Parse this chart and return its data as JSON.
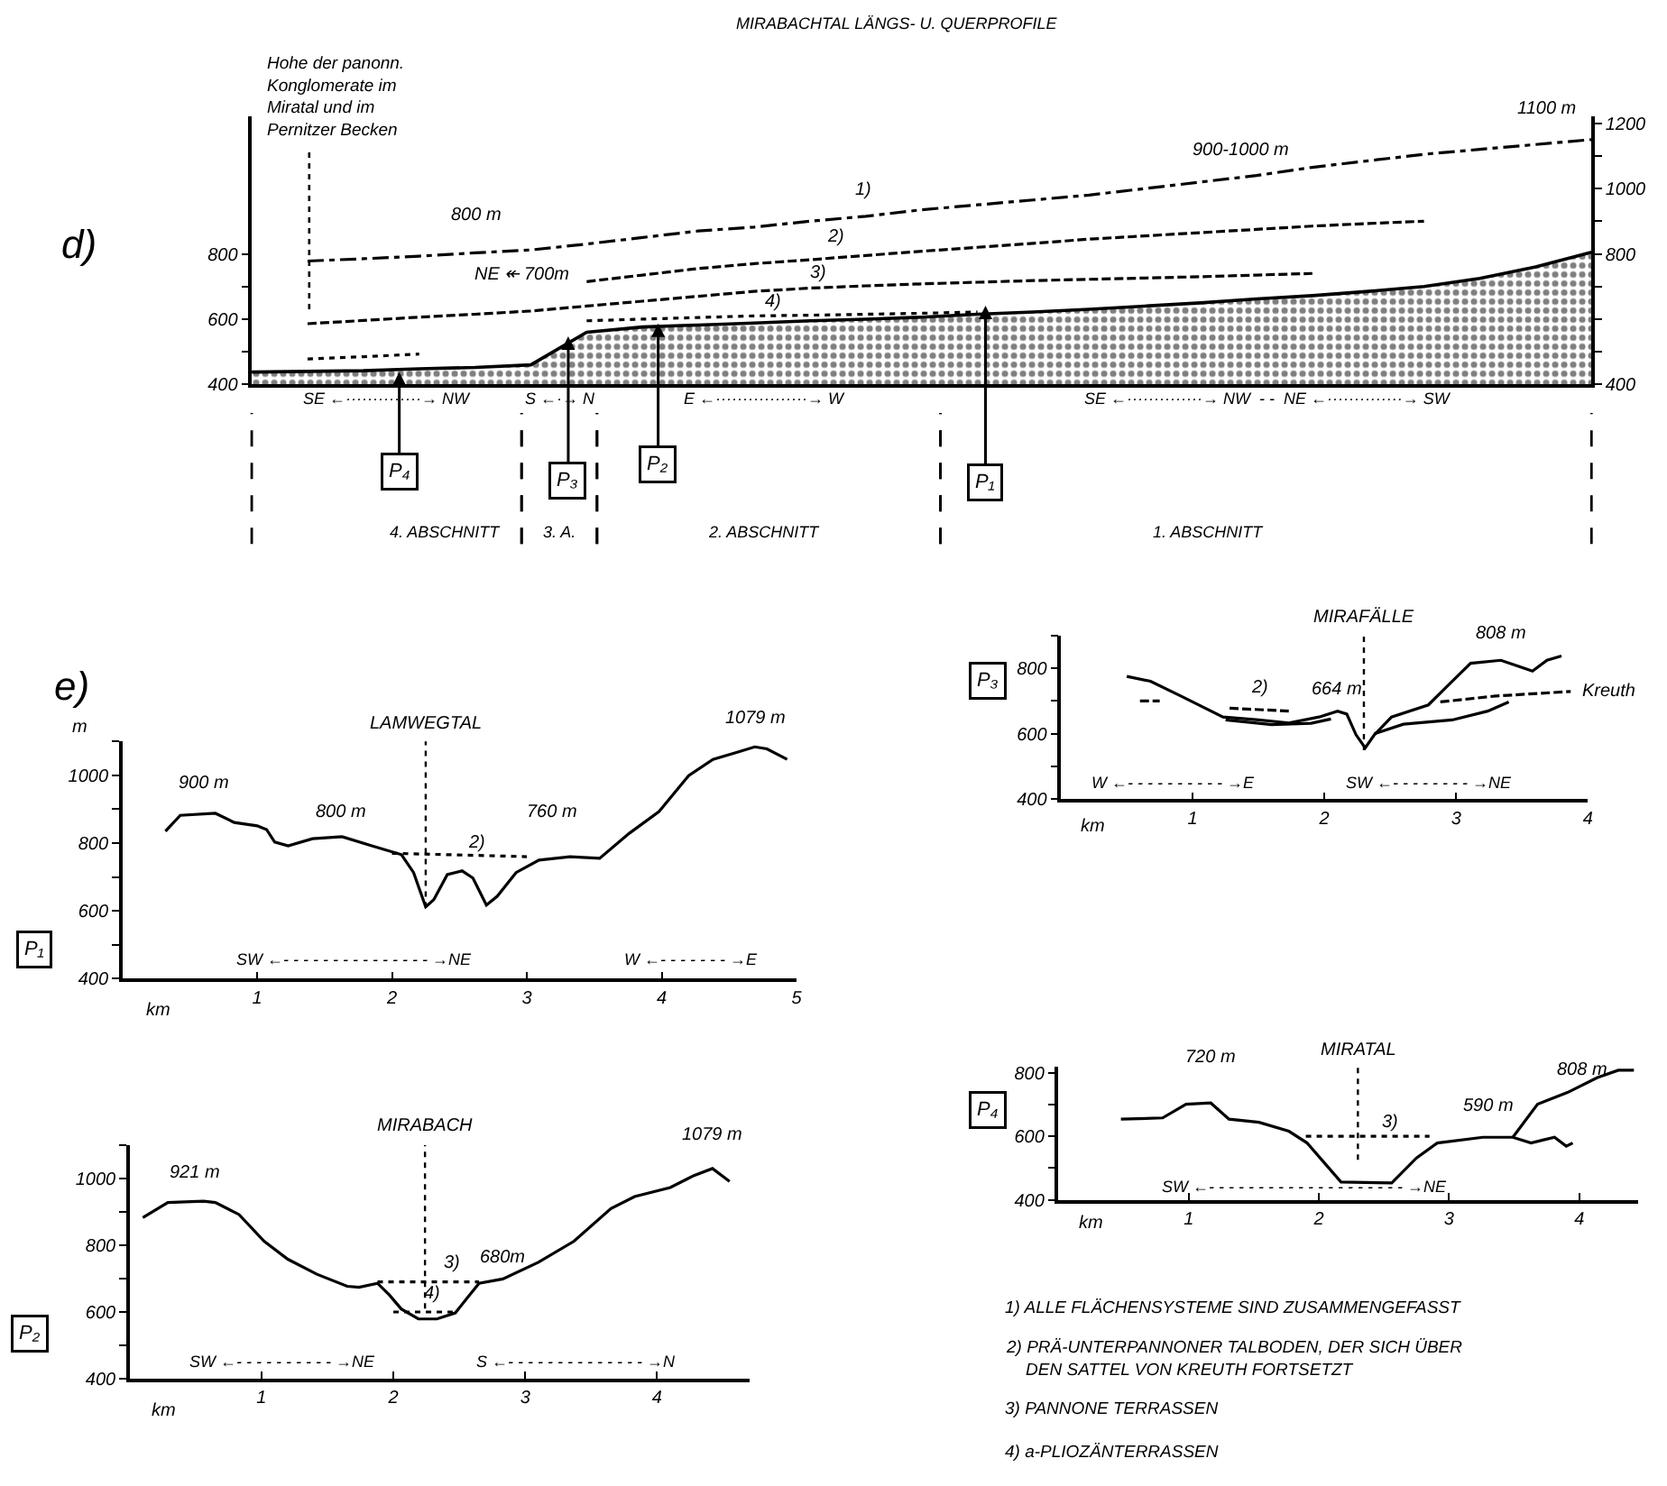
{
  "chart_data": [
    {
      "type": "line",
      "title": "MIRABACHTAL LÄNGS- U. QUERPROFILE",
      "categories": [
        null,
        null,
        null,
        null,
        null,
        null,
        null,
        null,
        null,
        null,
        null,
        null,
        null,
        null,
        null,
        null,
        null,
        null,
        null,
        null,
        null,
        null,
        null,
        null,
        null
      ],
      "ylim": [
        400,
        1220
      ],
      "yticks": [
        400,
        {
          "value": 500,
          "label": null
        },
        600,
        {
          "value": 700,
          "label": null
        },
        800
      ],
      "y2lim": [
        400,
        1220
      ],
      "y2ticks": [
        400,
        {
          "value": 500,
          "label": null
        },
        {
          "value": 600,
          "label": null
        },
        {
          "value": 700,
          "label": null
        },
        800,
        {
          "value": 900,
          "label": null
        },
        1000,
        {
          "value": 1100,
          "label": null
        },
        1200
      ],
      "tick_labels": "y",
      "marker": "none",
      "series": [
        {
          "type": "area",
          "color": "#000000",
          "values": [
            438,
            440,
            442,
            448,
            452,
            460,
            560,
            576,
            582,
            588,
            595,
            600,
            606,
            615,
            622,
            630,
            640,
            650,
            662,
            672,
            685,
            700,
            725,
            760,
            805
          ]
        },
        {
          "color": "#000000",
          "line_style": "dashdot",
          "axis": "y2",
          "values": [
            null,
            778,
            785,
            793,
            803,
            812,
            830,
            850,
            870,
            882,
            900,
            915,
            935,
            950,
            965,
            980,
            1000,
            1020,
            1040,
            1065,
            1085,
            1105,
            1120,
            1135,
            1150
          ]
        },
        {
          "color": "#000000",
          "line_style": "dashed",
          "values": [
            null,
            null,
            null,
            null,
            null,
            null,
            715,
            735,
            755,
            770,
            782,
            795,
            808,
            820,
            832,
            845,
            855,
            865,
            875,
            885,
            893,
            900,
            null,
            null,
            null
          ]
        },
        {
          "color": "#000000",
          "line_style": "dashed",
          "values": [
            null,
            586,
            596,
            606,
            615,
            625,
            640,
            655,
            670,
            685,
            695,
            702,
            708,
            713,
            718,
            722,
            726,
            730,
            735,
            740,
            null,
            null,
            null,
            null,
            null
          ]
        },
        {
          "color": "#000000",
          "line_style": "dotted",
          "values": [
            null,
            478,
            485,
            493,
            null,
            null,
            595,
            600,
            605,
            610,
            612,
            615,
            618,
            622,
            null,
            null,
            null,
            null,
            null,
            null,
            null,
            null,
            null,
            null,
            null
          ]
        }
      ],
      "annotations": [
        "d)",
        "Hohe der panonn.\nKonglomerate im\nMiratal und im\nPernitzer Becken",
        "800 m",
        "NE ↞ 700m",
        "900-1000 m",
        "1100 m",
        "1)",
        "2)",
        "3)",
        "4)",
        "P₄",
        "P₃",
        "P₂",
        "P₁",
        "SE ←··············→ NW",
        "S ←·→ N",
        "E ←·················→ W",
        "SE ←··············→ NW  - -  NE ←··············→ SW",
        "4. ABSCHNITT",
        "3. A.",
        "2. ABSCHNITT",
        "1. ABSCHNITT"
      ]
    },
    {
      "type": "line",
      "xlabel": "km",
      "ylabel": "m",
      "xlim": [
        0,
        5
      ],
      "xticks": [
        1,
        2,
        3,
        4,
        5
      ],
      "ylim": [
        400,
        1100
      ],
      "yticks": [
        400,
        {
          "value": 500,
          "label": null
        },
        600,
        {
          "value": 700,
          "label": null
        },
        800,
        {
          "value": 900,
          "label": null
        },
        1000,
        {
          "value": 1100,
          "label": null
        }
      ],
      "marker": "none",
      "series": [
        {
          "color": "#000000",
          "x": [
            0.32,
            0.43,
            0.69,
            0.83,
            1.0,
            1.07,
            1.13,
            1.23,
            1.41,
            1.63,
            1.85,
            2.07,
            2.16,
            2.25,
            2.31,
            2.41,
            2.52,
            2.6,
            2.7,
            2.78,
            2.92,
            3.09,
            3.32,
            3.54,
            3.76,
            3.98,
            4.2,
            4.38,
            4.56,
            4.69,
            4.78,
            4.93
          ],
          "values": [
            835,
            882,
            888,
            861,
            851,
            840,
            803,
            792,
            813,
            819,
            792,
            766,
            713,
            612,
            633,
            707,
            718,
            697,
            617,
            643,
            713,
            750,
            760,
            755,
            829,
            893,
            999,
            1047,
            1068,
            1084,
            1078,
            1047
          ]
        },
        {
          "color": "#000000",
          "line_style": "dotted",
          "x": [
            2.0,
            3.0
          ],
          "values": [
            770,
            760
          ]
        }
      ],
      "ref_lines": [
        {
          "axis": "x",
          "value": 2.25,
          "label": "LAMWEGTAL",
          "line_style": "dotted"
        }
      ],
      "annotations": [
        "e)",
        "P₁",
        {
          "text": "900 m",
          "x": 0.6,
          "y": 888
        },
        "800 m",
        "760 m",
        {
          "text": "1079 m",
          "x": 4.69,
          "y": 1084
        },
        "2)",
        "SW ←- - - - - - - - - - - - - - - →NE",
        "W ←- - - - - - - →E"
      ]
    },
    {
      "type": "line",
      "xlabel": "km",
      "xlim": [
        0,
        4
      ],
      "xticks": [
        1,
        2,
        3,
        4
      ],
      "ylim": [
        400,
        900
      ],
      "yticks": [
        400,
        {
          "value": 500,
          "label": null
        },
        600,
        {
          "value": 700,
          "label": null
        },
        800,
        {
          "value": 900,
          "label": null
        }
      ],
      "marker": "none",
      "series": [
        {
          "color": "#000000",
          "x": [
            0.5,
            0.68,
            0.91,
            1.23,
            1.5,
            1.73,
            1.96,
            2.1,
            2.17,
            2.24,
            2.31,
            2.38,
            2.51,
            2.79,
            2.97,
            3.11,
            3.34,
            3.47,
            3.58,
            3.69,
            3.8
          ],
          "values": [
            775,
            760,
            715,
            651,
            642,
            633,
            651,
            669,
            660,
            597,
            557,
            597,
            651,
            688,
            760,
            815,
            824,
            806,
            791,
            824,
            837
          ]
        },
        {
          "color": "#000000",
          "x": [
            1.25,
            1.6,
            1.9,
            2.05,
            2.2,
            2.38,
            2.6,
            2.97,
            3.24,
            3.4
          ],
          "values": [
            642,
            628,
            632,
            645,
            null,
            600,
            629,
            642,
            669,
            697
          ]
        },
        {
          "color": "#000000",
          "line_style": "dashed",
          "x": [
            0.6,
            0.75,
            0.9,
            1.28,
            1.73,
            1.9,
            2.88,
            3.3,
            3.87
          ],
          "values": [
            700,
            700,
            null,
            678,
            669,
            null,
            697,
            715,
            729
          ]
        }
      ],
      "ref_lines": [
        {
          "axis": "x",
          "value": 2.3,
          "label": "MIRAFÄLLE",
          "line_style": "dotted"
        }
      ],
      "annotations": [
        "P₃",
        {
          "text": "2)",
          "x": 1.5,
          "y": 675
        },
        {
          "text": "664 m",
          "x": 2.1,
          "y": 669
        },
        {
          "text": "808 m",
          "x": 3.34,
          "y": 824
        },
        {
          "text": "Kreuth",
          "x": 3.87,
          "y": 729
        },
        "W ←- - - - - - - - - - →E",
        "SW ←- - - - - - - - →NE"
      ]
    },
    {
      "type": "line",
      "xlabel": "km",
      "xlim": [
        0,
        4.7
      ],
      "xticks": [
        1,
        2,
        3,
        4
      ],
      "ylim": [
        400,
        1100
      ],
      "yticks": [
        400,
        {
          "value": 500,
          "label": null
        },
        600,
        {
          "value": 700,
          "label": null
        },
        800,
        {
          "value": 900,
          "label": null
        },
        1000,
        {
          "value": 1100,
          "label": null
        }
      ],
      "marker": "none",
      "series": [
        {
          "color": "#000000",
          "x": [
            0.1,
            0.29,
            0.56,
            0.65,
            0.83,
            1.02,
            1.2,
            1.42,
            1.65,
            1.74,
            1.88,
            1.97,
            2.06,
            2.19,
            2.33,
            2.47,
            2.56,
            2.65,
            2.83,
            3.1,
            3.37,
            3.65,
            3.83,
            4.1,
            4.28,
            4.42,
            4.55
          ],
          "values": [
            883,
            928,
            932,
            928,
            892,
            812,
            758,
            713,
            677,
            674,
            686,
            651,
            609,
            579,
            579,
            597,
            642,
            686,
            699,
            749,
            812,
            910,
            946,
            973,
            1009,
            1030,
            991
          ]
        },
        {
          "color": "#000000",
          "line_style": "dotted",
          "x": [
            1.88,
            2.65
          ],
          "values": [
            690,
            690
          ]
        },
        {
          "color": "#000000",
          "line_style": "dotted",
          "x": [
            2.0,
            2.45
          ],
          "values": [
            600,
            600
          ]
        }
      ],
      "ref_lines": [
        {
          "axis": "x",
          "value": 2.24,
          "label": "MIRABACH",
          "line_style": "dotted"
        }
      ],
      "annotations": [
        "P₂",
        {
          "text": "921 m",
          "x": 0.5,
          "y": 932
        },
        {
          "text": "1079 m",
          "x": 4.42,
          "y": 1030
        },
        {
          "text": "680m",
          "x": 2.83,
          "y": 699
        },
        {
          "text": "3)",
          "x": 2.45,
          "y": 690
        },
        {
          "text": "4)",
          "x": 2.3,
          "y": 600
        },
        "SW ←- - - - - - - - - - →NE",
        "S ←- - - - - - - - - - - - - - →N"
      ]
    },
    {
      "type": "line",
      "xlabel": "km",
      "xlim": [
        0,
        4.45
      ],
      "xticks": [
        1,
        2,
        3,
        4
      ],
      "ylim": [
        400,
        820
      ],
      "yticks": [
        400,
        {
          "value": 500,
          "label": null
        },
        600,
        {
          "value": 700,
          "label": null
        },
        800
      ],
      "marker": "none",
      "series": [
        {
          "color": "#000000",
          "x": [
            0.48,
            0.8,
            0.98,
            1.17,
            1.31,
            1.54,
            1.77,
            1.91,
            2.05,
            2.17,
            2.56,
            2.75,
            2.91,
            3.26,
            3.49,
            3.63,
            3.72,
            3.81,
            3.9,
            3.95
          ],
          "values": [
            654,
            658,
            701,
            705,
            654,
            644,
            616,
            579,
            513,
            456,
            453,
            532,
            579,
            597,
            597,
            579,
            588,
            597,
            569,
            579
          ]
        },
        {
          "color": "#000000",
          "x": [
            3.49,
            3.68,
            3.91,
            4.14,
            4.3,
            4.42
          ],
          "values": [
            597,
            701,
            738,
            785,
            808,
            808
          ]
        },
        {
          "color": "#000000",
          "line_style": "dotted",
          "x": [
            1.9,
            2.85
          ],
          "values": [
            600,
            600
          ]
        }
      ],
      "ref_lines": [
        {
          "axis": "x",
          "value": 2.3,
          "label": "MIRATAL",
          "line_style": "dotted"
        }
      ],
      "annotations": [
        "P₄",
        {
          "text": "720 m",
          "x": 1.17,
          "y": 705
        },
        {
          "text": "590 m",
          "x": 3.3,
          "y": 597
        },
        {
          "text": "808 m",
          "x": 4.3,
          "y": 808
        },
        {
          "text": "3)",
          "x": 2.55,
          "y": 600
        },
        "SW ←- - - - - - - - - - - - - - - - - - - - →NE",
        "1) ALLE FLÄCHENSYSTEME SIND ZUSAMMENGEFASST",
        "2) PRÄ-UNTERPANNONER TALBODEN, DER SICH ÜBER\n    DEN SATTEL VON KREUTH FORTSETZT",
        "3) PANNONE TERRASSEN",
        "4) a-PLIOZÄNTERRASSEN"
      ]
    }
  ]
}
